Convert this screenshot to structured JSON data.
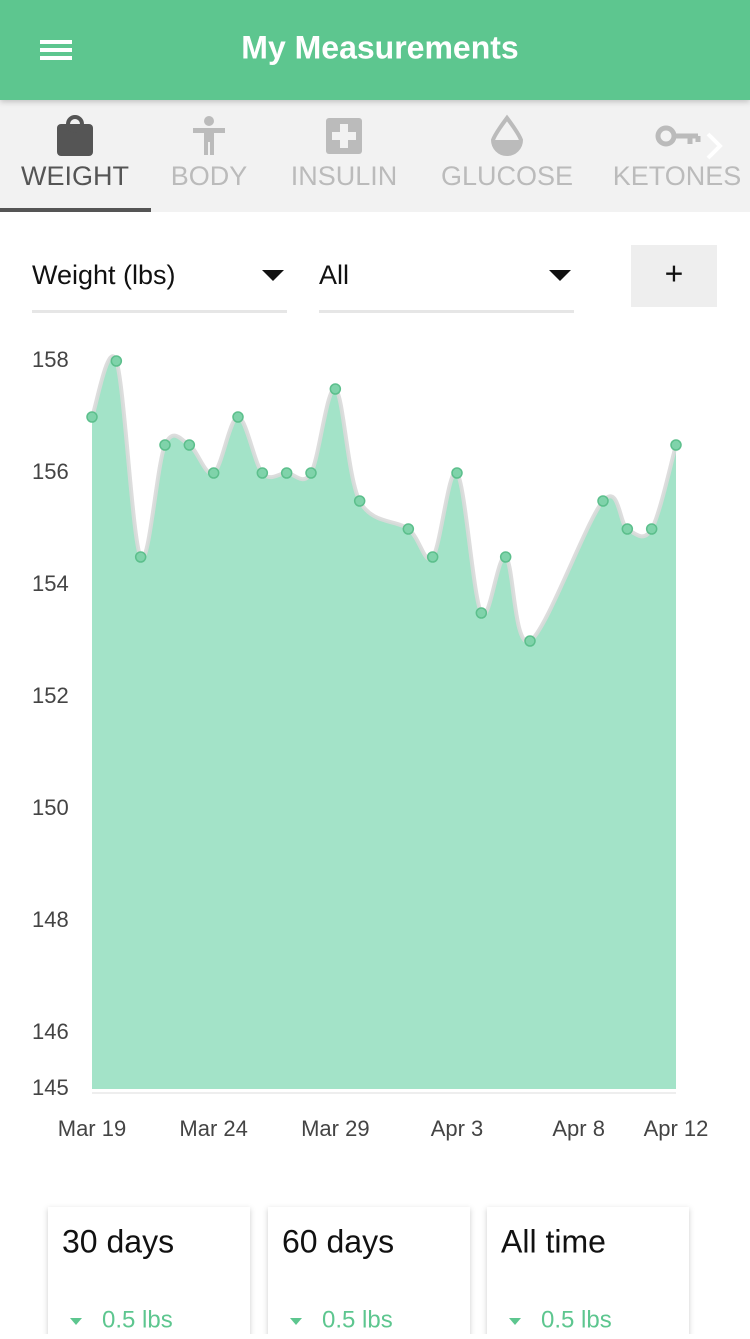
{
  "header": {
    "title": "My Measurements"
  },
  "tabs": [
    {
      "label": "WEIGHT",
      "active": true
    },
    {
      "label": "BODY",
      "active": false
    },
    {
      "label": "INSULIN",
      "active": false
    },
    {
      "label": "GLUCOSE",
      "active": false
    },
    {
      "label": "KETONES",
      "active": false
    }
  ],
  "filters": {
    "measure": "Weight (lbs)",
    "range": "All",
    "add": "+"
  },
  "chart_data": {
    "type": "area",
    "x": [
      "Mar 19",
      "Mar 20",
      "Mar 21",
      "Mar 22",
      "Mar 23",
      "Mar 24",
      "Mar 25",
      "Mar 26",
      "Mar 27",
      "Mar 28",
      "Mar 29",
      "Mar 30",
      "Apr 1",
      "Apr 2",
      "Apr 3",
      "Apr 4",
      "Apr 5",
      "Apr 6",
      "Apr 9",
      "Apr 10",
      "Apr 11",
      "Apr 12"
    ],
    "values": [
      157,
      158,
      154.5,
      156.5,
      156.5,
      156,
      157,
      156,
      156,
      156,
      157.5,
      155.5,
      155,
      154.5,
      156,
      153.5,
      154.5,
      153,
      155.5,
      155,
      155,
      156.5
    ],
    "xlim": [
      "Mar 19",
      "Apr 12"
    ],
    "xticks": [
      "Mar 19",
      "Mar 24",
      "Mar 29",
      "Apr 3",
      "Apr 8",
      "Apr 12"
    ],
    "ylim": [
      145,
      158
    ],
    "yticks": [
      145,
      146,
      148,
      150,
      152,
      154,
      156,
      158
    ],
    "color": "#a3e3c8",
    "line_color": "#d9d9d9",
    "marker_color": "#7fd3aa"
  },
  "stats": [
    {
      "period": "30 days",
      "change": "0.5 lbs"
    },
    {
      "period": "60 days",
      "change": "0.5 lbs"
    },
    {
      "period": "All time",
      "change": "0.5 lbs"
    }
  ]
}
